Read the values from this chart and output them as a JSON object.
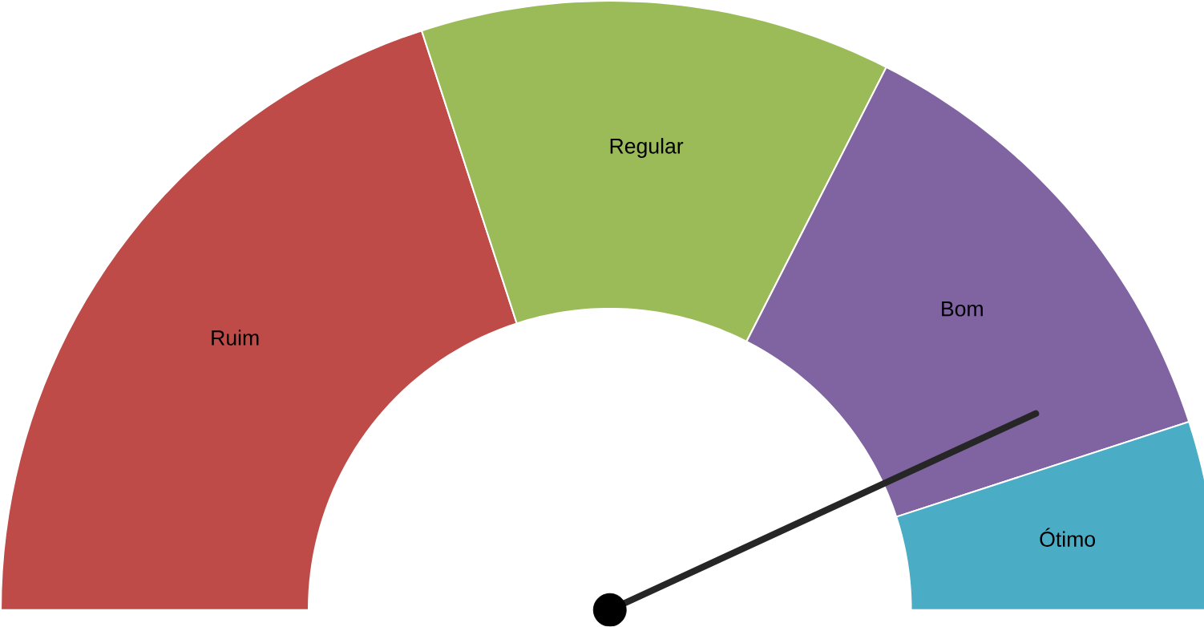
{
  "chart_data": {
    "type": "donut",
    "categories": [
      "Ruim",
      "Regular",
      "Bom",
      "Ótimo"
    ],
    "values": [
      40,
      25,
      25,
      10
    ],
    "colors": [
      "#be4b48",
      "#9bbb59",
      "#8064a2",
      "#4bacc6"
    ],
    "needle": "Bom"
  }
}
